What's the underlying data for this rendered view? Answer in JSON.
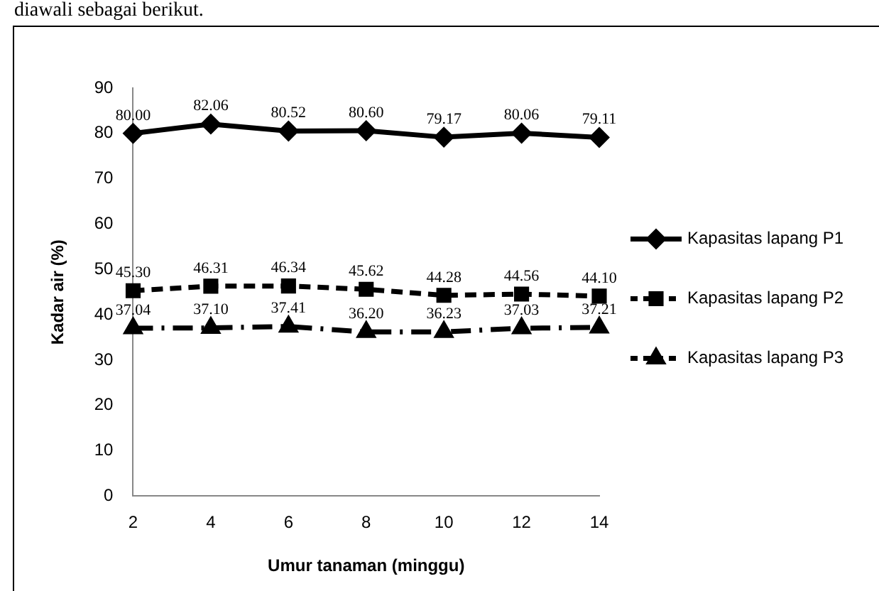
{
  "chart_data": {
    "type": "line",
    "annotations": [
      "diawali sebagai berikut."
    ],
    "xlabel": "Umur tanaman (minggu)",
    "ylabel": "Kadar air (%)",
    "categories": [
      "2",
      "4",
      "6",
      "8",
      "10",
      "12",
      "14"
    ],
    "ylim": [
      0,
      90
    ],
    "yticks": [
      0,
      10,
      20,
      30,
      40,
      50,
      60,
      70,
      80,
      90
    ],
    "grid": false,
    "legend": "right",
    "series": [
      {
        "name": "Kapasitas lapang P1",
        "color": "#000000",
        "marker": "diamond",
        "line_style": "solid",
        "values": [
          80.0,
          82.06,
          80.52,
          80.6,
          79.17,
          80.06,
          79.11
        ],
        "value_labels": [
          "80.00",
          "82.06",
          "80.52",
          "80.60",
          "79.17",
          "80.06",
          "79.11"
        ]
      },
      {
        "name": "Kapasitas lapang P2",
        "color": "#000000",
        "marker": "square",
        "line_style": "dashed",
        "values": [
          45.3,
          46.31,
          46.34,
          45.62,
          44.28,
          44.56,
          44.1
        ],
        "value_labels": [
          "45.30",
          "46.31",
          "46.34",
          "45.62",
          "44.28",
          "44.56",
          "44.10"
        ]
      },
      {
        "name": "Kapasitas lapang P3",
        "color": "#000000",
        "marker": "triangle",
        "line_style": "dashdot",
        "values": [
          37.04,
          37.1,
          37.41,
          36.2,
          36.23,
          37.03,
          37.21
        ],
        "value_labels": [
          "37.04",
          "37.10",
          "37.41",
          "36.20",
          "36.23",
          "37.03",
          "37.21"
        ]
      }
    ]
  }
}
